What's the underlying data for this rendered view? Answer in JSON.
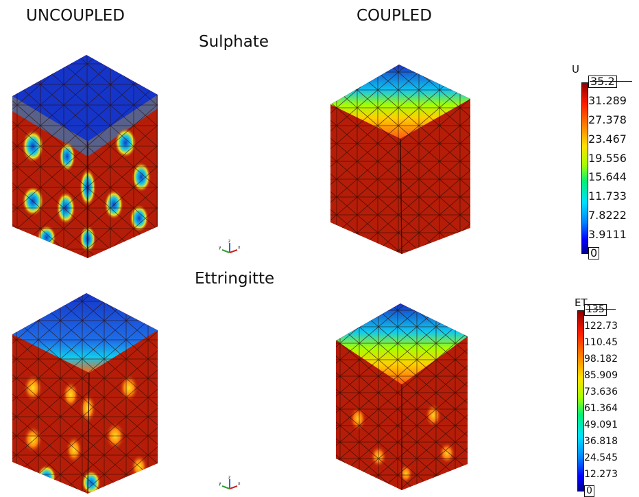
{
  "headers": {
    "uncoupled": "UNCOUPLED",
    "coupled": "COUPLED",
    "sulphate": "Sulphate",
    "ettringitte": "Ettringitte"
  },
  "legend_u": {
    "title": "U",
    "ticks": [
      "35.2",
      "31.289",
      "27.378",
      "23.467",
      "19.556",
      "15.644",
      "11.733",
      "7.8222",
      "3.9111",
      "0"
    ]
  },
  "legend_et": {
    "title": "ET",
    "ticks": [
      "135",
      "122.73",
      "110.45",
      "98.182",
      "85.909",
      "73.636",
      "61.364",
      "49.091",
      "36.818",
      "24.545",
      "12.273",
      "0"
    ]
  },
  "axes_labels": {
    "y": "y",
    "z": "z",
    "x": "x"
  },
  "colors": {
    "red": "#b51d08",
    "blue": "#1231c4",
    "cyan": "#10c8f0",
    "yellow": "#f0e020",
    "orange": "#ff6a10"
  }
}
